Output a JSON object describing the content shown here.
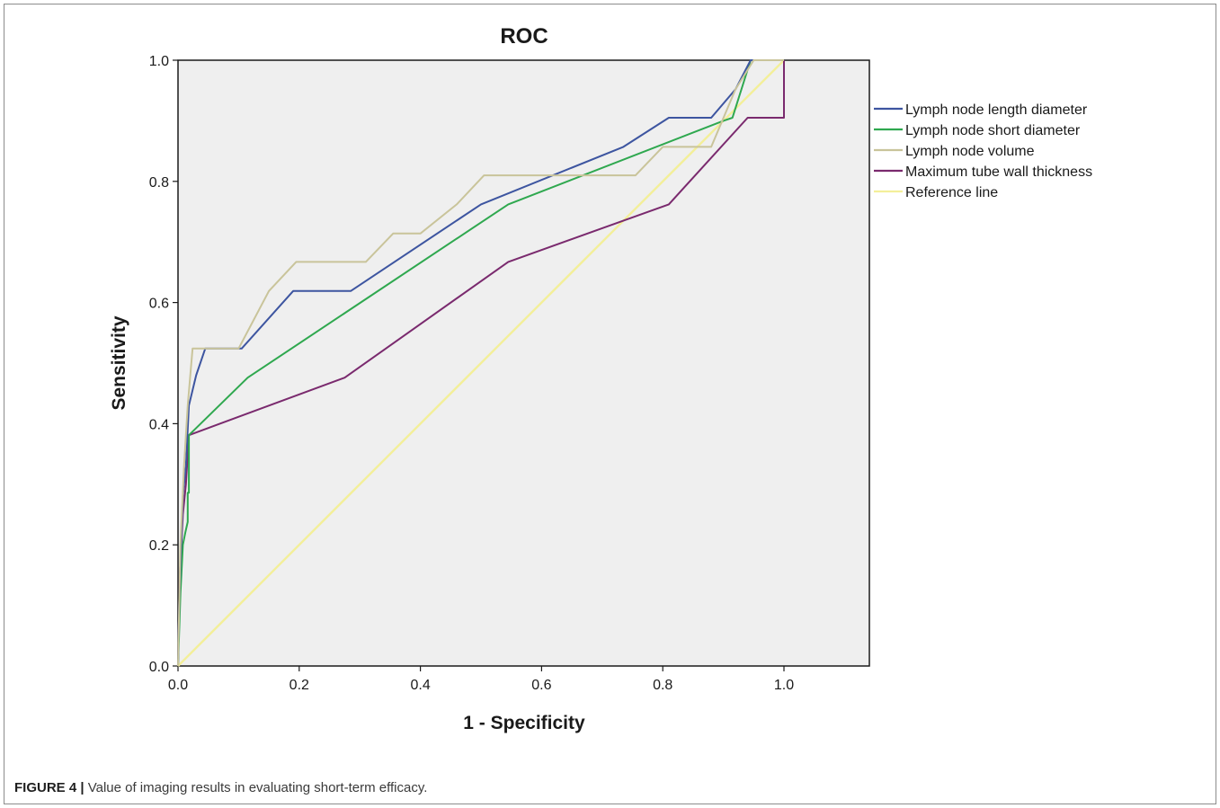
{
  "caption": {
    "label": "FIGURE 4 |",
    "text": " Value of imaging results in evaluating short-term efficacy."
  },
  "chart_data": {
    "type": "line",
    "title": "ROC",
    "xlabel": "1 - Specificity",
    "ylabel": "Sensitivity",
    "xlim": [
      0,
      1.14
    ],
    "ylim": [
      0,
      1
    ],
    "xticks": [
      "0.0",
      "0.2",
      "0.4",
      "0.6",
      "0.8",
      "1.0"
    ],
    "yticks": [
      "0.0",
      "0.2",
      "0.4",
      "0.6",
      "0.8",
      "1.0"
    ],
    "grid": false,
    "legend_position": "right",
    "plot_background": "#efefef",
    "series": [
      {
        "name": "Lymph node length diameter",
        "color": "#3d55a0",
        "points": [
          [
            0,
            0
          ],
          [
            0.002,
            0.1
          ],
          [
            0.005,
            0.2
          ],
          [
            0.008,
            0.28
          ],
          [
            0.013,
            0.33
          ],
          [
            0.018,
            0.43
          ],
          [
            0.03,
            0.48
          ],
          [
            0.045,
            0.524
          ],
          [
            0.105,
            0.524
          ],
          [
            0.19,
            0.619
          ],
          [
            0.285,
            0.619
          ],
          [
            0.5,
            0.762
          ],
          [
            0.735,
            0.857
          ],
          [
            0.81,
            0.905
          ],
          [
            0.88,
            0.905
          ],
          [
            0.92,
            0.952
          ],
          [
            0.945,
            1.0
          ],
          [
            1.0,
            1.0
          ]
        ]
      },
      {
        "name": "Lymph node short diameter",
        "color": "#2fa84f",
        "points": [
          [
            0,
            0
          ],
          [
            0.004,
            0.12
          ],
          [
            0.008,
            0.2
          ],
          [
            0.012,
            0.22
          ],
          [
            0.016,
            0.238
          ],
          [
            0.016,
            0.286
          ],
          [
            0.018,
            0.286
          ],
          [
            0.018,
            0.381
          ],
          [
            0.115,
            0.476
          ],
          [
            0.545,
            0.762
          ],
          [
            0.9,
            0.9
          ],
          [
            0.915,
            0.905
          ],
          [
            0.945,
            1.0
          ],
          [
            1.0,
            1.0
          ]
        ]
      },
      {
        "name": "Lymph node volume",
        "color": "#c9c49a",
        "points": [
          [
            0,
            0
          ],
          [
            0.004,
            0.2
          ],
          [
            0.01,
            0.33
          ],
          [
            0.016,
            0.43
          ],
          [
            0.024,
            0.524
          ],
          [
            0.1,
            0.524
          ],
          [
            0.15,
            0.619
          ],
          [
            0.195,
            0.667
          ],
          [
            0.31,
            0.667
          ],
          [
            0.355,
            0.714
          ],
          [
            0.4,
            0.714
          ],
          [
            0.46,
            0.762
          ],
          [
            0.505,
            0.81
          ],
          [
            0.755,
            0.81
          ],
          [
            0.8,
            0.857
          ],
          [
            0.88,
            0.857
          ],
          [
            0.92,
            0.952
          ],
          [
            0.95,
            1.0
          ],
          [
            1.0,
            1.0
          ]
        ]
      },
      {
        "name": "Maximum tube wall thickness",
        "color": "#7a2a6e",
        "points": [
          [
            0,
            0
          ],
          [
            0.003,
            0.15
          ],
          [
            0.008,
            0.25
          ],
          [
            0.013,
            0.3
          ],
          [
            0.018,
            0.381
          ],
          [
            0.275,
            0.476
          ],
          [
            0.545,
            0.667
          ],
          [
            0.81,
            0.762
          ],
          [
            0.94,
            0.905
          ],
          [
            1.0,
            0.905
          ],
          [
            1.0,
            1.0
          ]
        ]
      },
      {
        "name": "Reference line",
        "color": "#f3ef9a",
        "points": [
          [
            0,
            0
          ],
          [
            1,
            1
          ]
        ]
      }
    ]
  }
}
